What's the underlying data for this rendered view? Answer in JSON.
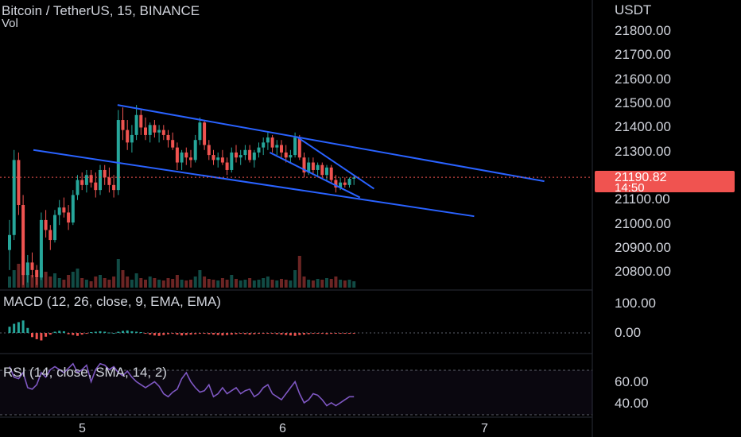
{
  "header": {
    "symbol_line": "Bitcoin / TetherUS, 15, BINANCE",
    "volume_label": "Vol"
  },
  "price_axis": {
    "currency": "USDT",
    "ticks": [
      "21800.00",
      "21700.00",
      "21600.00",
      "21500.00",
      "21400.00",
      "21300.00",
      "21100.00",
      "21000.00",
      "20900.00",
      "20800.00"
    ]
  },
  "last_price": {
    "value": "21190.82",
    "countdown": "14:50",
    "badge_color": "#f05350"
  },
  "macd": {
    "label": "MACD (12, 26, close, 9, EMA, EMA)",
    "ticks": [
      "100.00",
      "0.00"
    ]
  },
  "rsi": {
    "label": "RSI (14, close, SMA, 14, 2)",
    "ticks": [
      "60.00",
      "40.00"
    ],
    "line_color": "#7e57c2"
  },
  "time_axis": {
    "ticks": [
      "5",
      "6",
      "7"
    ]
  },
  "colors": {
    "up": "#26a69a",
    "down": "#ef5350",
    "trendline": "#2962ff",
    "background": "#000000",
    "text": "#d1d4dc"
  },
  "chart_data": {
    "type": "candlestick",
    "title": "Bitcoin / TetherUS, 15, BINANCE",
    "ylabel": "USDT",
    "ylim": [
      20740,
      21900
    ],
    "x_ticks": [
      "5",
      "6",
      "7"
    ],
    "candles_ohlc": [
      [
        20900,
        21020,
        20820,
        20960
      ],
      [
        20960,
        21300,
        20940,
        21260
      ],
      [
        21260,
        21290,
        21040,
        21080
      ],
      [
        21080,
        21120,
        20760,
        20800
      ],
      [
        20800,
        20880,
        20770,
        20850
      ],
      [
        20850,
        20890,
        20790,
        20820
      ],
      [
        20820,
        20840,
        20760,
        20790
      ],
      [
        20790,
        21050,
        20780,
        21020
      ],
      [
        21020,
        21060,
        20950,
        20980
      ],
      [
        20980,
        21000,
        20900,
        20940
      ],
      [
        20940,
        21060,
        20930,
        21040
      ],
      [
        21040,
        21100,
        21000,
        21070
      ],
      [
        21070,
        21110,
        21030,
        21050
      ],
      [
        21050,
        21080,
        20980,
        21010
      ],
      [
        21010,
        21140,
        21000,
        21120
      ],
      [
        21120,
        21200,
        21100,
        21180
      ],
      [
        21180,
        21210,
        21140,
        21160
      ],
      [
        21160,
        21220,
        21130,
        21200
      ],
      [
        21200,
        21220,
        21150,
        21170
      ],
      [
        21170,
        21210,
        21110,
        21140
      ],
      [
        21140,
        21240,
        21120,
        21220
      ],
      [
        21220,
        21240,
        21160,
        21190
      ],
      [
        21190,
        21230,
        21130,
        21160
      ],
      [
        21160,
        21200,
        21110,
        21140
      ],
      [
        21140,
        21460,
        21120,
        21420
      ],
      [
        21420,
        21470,
        21340,
        21380
      ],
      [
        21380,
        21420,
        21300,
        21330
      ],
      [
        21330,
        21400,
        21290,
        21360
      ],
      [
        21360,
        21480,
        21340,
        21440
      ],
      [
        21440,
        21460,
        21360,
        21390
      ],
      [
        21390,
        21430,
        21340,
        21360
      ],
      [
        21360,
        21410,
        21330,
        21400
      ],
      [
        21400,
        21420,
        21350,
        21370
      ],
      [
        21370,
        21400,
        21330,
        21380
      ],
      [
        21380,
        21400,
        21340,
        21360
      ],
      [
        21360,
        21380,
        21310,
        21340
      ],
      [
        21340,
        21370,
        21300,
        21310
      ],
      [
        21310,
        21330,
        21220,
        21250
      ],
      [
        21250,
        21300,
        21220,
        21290
      ],
      [
        21290,
        21310,
        21240,
        21270
      ],
      [
        21270,
        21300,
        21230,
        21260
      ],
      [
        21260,
        21360,
        21250,
        21340
      ],
      [
        21340,
        21430,
        21320,
        21410
      ],
      [
        21410,
        21420,
        21300,
        21320
      ],
      [
        21320,
        21340,
        21260,
        21280
      ],
      [
        21280,
        21300,
        21240,
        21260
      ],
      [
        21260,
        21290,
        21230,
        21270
      ],
      [
        21270,
        21300,
        21240,
        21250
      ],
      [
        21250,
        21270,
        21200,
        21220
      ],
      [
        21220,
        21310,
        21210,
        21290
      ],
      [
        21290,
        21320,
        21250,
        21270
      ],
      [
        21270,
        21300,
        21240,
        21280
      ],
      [
        21280,
        21320,
        21260,
        21300
      ],
      [
        21300,
        21320,
        21250,
        21260
      ],
      [
        21260,
        21300,
        21230,
        21290
      ],
      [
        21290,
        21330,
        21270,
        21310
      ],
      [
        21310,
        21350,
        21280,
        21330
      ],
      [
        21330,
        21370,
        21300,
        21350
      ],
      [
        21350,
        21360,
        21290,
        21310
      ],
      [
        21310,
        21340,
        21280,
        21320
      ],
      [
        21320,
        21340,
        21270,
        21290
      ],
      [
        21290,
        21320,
        21250,
        21270
      ],
      [
        21270,
        21300,
        21250,
        21280
      ],
      [
        21280,
        21370,
        21270,
        21350
      ],
      [
        21350,
        21360,
        21260,
        21270
      ],
      [
        21270,
        21290,
        21190,
        21210
      ],
      [
        21210,
        21270,
        21200,
        21250
      ],
      [
        21250,
        21270,
        21200,
        21220
      ],
      [
        21220,
        21250,
        21190,
        21240
      ],
      [
        21240,
        21250,
        21190,
        21200
      ],
      [
        21200,
        21240,
        21180,
        21230
      ],
      [
        21230,
        21240,
        21170,
        21180
      ],
      [
        21180,
        21200,
        21130,
        21150
      ],
      [
        21150,
        21190,
        21140,
        21170
      ],
      [
        21170,
        21190,
        21150,
        21160
      ],
      [
        21160,
        21190,
        21150,
        21185
      ],
      [
        21185,
        21200,
        21160,
        21190
      ]
    ],
    "volume": [
      14,
      22,
      30,
      40,
      18,
      16,
      12,
      26,
      20,
      14,
      18,
      12,
      10,
      16,
      20,
      24,
      12,
      10,
      8,
      14,
      16,
      12,
      10,
      14,
      36,
      22,
      14,
      10,
      18,
      12,
      10,
      14,
      12,
      10,
      9,
      12,
      11,
      16,
      10,
      9,
      10,
      14,
      22,
      14,
      11,
      10,
      9,
      12,
      10,
      16,
      11,
      9,
      10,
      12,
      9,
      10,
      12,
      14,
      10,
      9,
      11,
      10,
      9,
      22,
      40,
      14,
      10,
      9,
      11,
      10,
      12,
      11,
      14,
      10,
      9,
      10,
      8
    ],
    "trendlines": [
      {
        "from": [
          "4.75",
          21300
        ],
        "to": [
          "6.95",
          21035
        ],
        "color": "#2962ff"
      },
      {
        "from": [
          "5.17",
          21480
        ],
        "to": [
          "7.3",
          21175
        ],
        "color": "#2962ff"
      },
      {
        "from": [
          "5.93",
          21290
        ],
        "to": [
          "6.38",
          21110
        ],
        "color": "#2962ff"
      },
      {
        "from": [
          "6.07",
          21350
        ],
        "to": [
          "6.45",
          21145
        ],
        "color": "#2962ff"
      }
    ],
    "last_price": 21190.82,
    "macd_ylim": [
      -80,
      130
    ],
    "macd_hist": [
      30,
      44,
      52,
      60,
      24,
      -20,
      -30,
      -36,
      -18,
      -8,
      6,
      10,
      8,
      -6,
      -10,
      -14,
      -8,
      -4,
      4,
      6,
      8,
      6,
      2,
      0,
      6,
      10,
      12,
      8,
      6,
      4,
      -4,
      -8,
      -12,
      -14,
      -10,
      -6,
      -4,
      -8,
      -12,
      -10,
      -8,
      -6,
      -4,
      -2,
      -6,
      -8,
      -10,
      -12,
      -10,
      -8,
      -6,
      -4,
      -6,
      -8,
      -6,
      -4,
      -2,
      -2,
      -4,
      -6,
      -8,
      -10,
      -12,
      -14,
      -10,
      -8,
      -6,
      -4,
      -2,
      -4,
      -6,
      -4,
      -2,
      -2,
      -2,
      -1,
      -1
    ],
    "rsi_ylim": [
      30,
      67
    ],
    "rsi_values": [
      62,
      55,
      54,
      58,
      48,
      47,
      50,
      58,
      55,
      60,
      62,
      60,
      58,
      61,
      64,
      58,
      60,
      63,
      52,
      60,
      64,
      63,
      60,
      62,
      58,
      56,
      59,
      55,
      52,
      50,
      48,
      50,
      52,
      49,
      44,
      42,
      45,
      47,
      54,
      58,
      52,
      48,
      45,
      46,
      50,
      42,
      44,
      48,
      44,
      46,
      48,
      44,
      46,
      47,
      42,
      44,
      48,
      50,
      44,
      42,
      40,
      44,
      48,
      52,
      44,
      38,
      40,
      44,
      43,
      40,
      36,
      38,
      36,
      38,
      40,
      42,
      42
    ]
  }
}
